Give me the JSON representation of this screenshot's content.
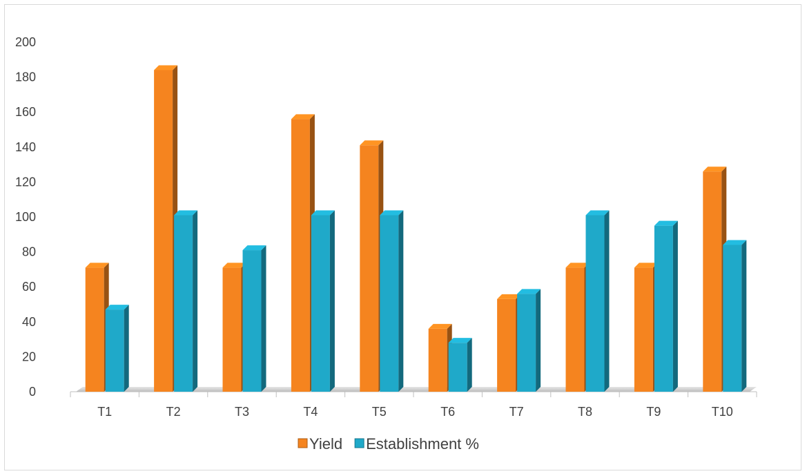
{
  "chart_data": {
    "type": "bar",
    "style": "3d-column",
    "categories": [
      "T1",
      "T2",
      "T3",
      "T4",
      "T5",
      "T6",
      "T7",
      "T8",
      "T9",
      "T10"
    ],
    "series": [
      {
        "name": "Yield",
        "color": "#f5841f",
        "values": [
          71,
          184,
          71,
          156,
          141,
          36,
          53,
          71,
          71,
          126
        ]
      },
      {
        "name": "Establishment %",
        "color": "#1fa9c9",
        "values": [
          47,
          101,
          81,
          101,
          101,
          28,
          56,
          101,
          95,
          84
        ]
      }
    ],
    "ylim": [
      0,
      200
    ],
    "yticks": [
      0,
      20,
      40,
      60,
      80,
      100,
      120,
      140,
      160,
      180,
      200
    ],
    "grid": false,
    "legend_position": "bottom"
  }
}
